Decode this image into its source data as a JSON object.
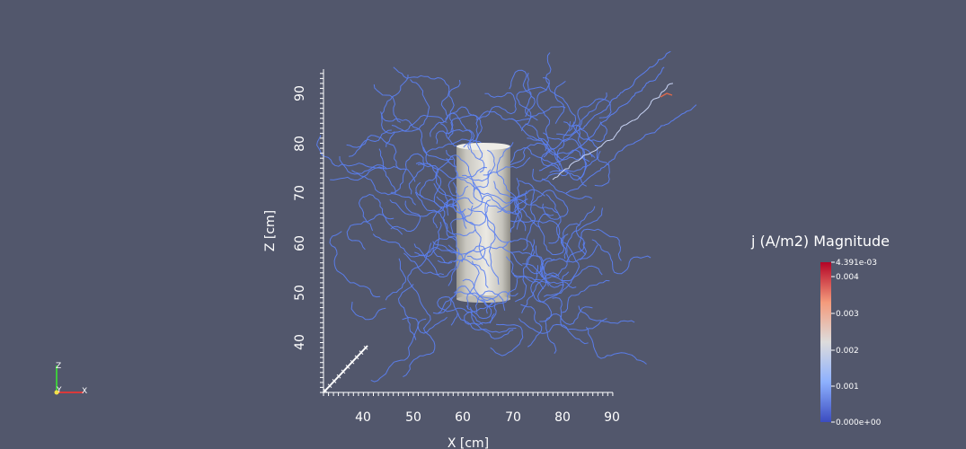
{
  "scene": {
    "background_color": "#52576c",
    "axes": {
      "x_title": "X [cm]",
      "z_title": "Z [cm]",
      "x_ticks": [
        "40",
        "50",
        "60",
        "70",
        "80",
        "90"
      ],
      "z_ticks": [
        "40",
        "50",
        "60",
        "70",
        "80",
        "90"
      ]
    },
    "object": {
      "shape": "cylinder",
      "color": "#d8d6d0"
    },
    "streamlines": {
      "color": "#5b7ff0",
      "highlight_color": "#e0694a"
    },
    "legend": {
      "title": "j (A/m2) Magnitude",
      "max_label": "4.391e-03",
      "min_label": "0.000e+00",
      "ticks": [
        "0.004",
        "0.003",
        "0.002",
        "0.001"
      ],
      "colormap": [
        "#3b4cc0",
        "#8db0fe",
        "#dddcdc",
        "#f49a7b",
        "#b40426"
      ]
    },
    "orientation": {
      "x_label": "X",
      "y_label": "Y",
      "z_label": "Z"
    }
  }
}
